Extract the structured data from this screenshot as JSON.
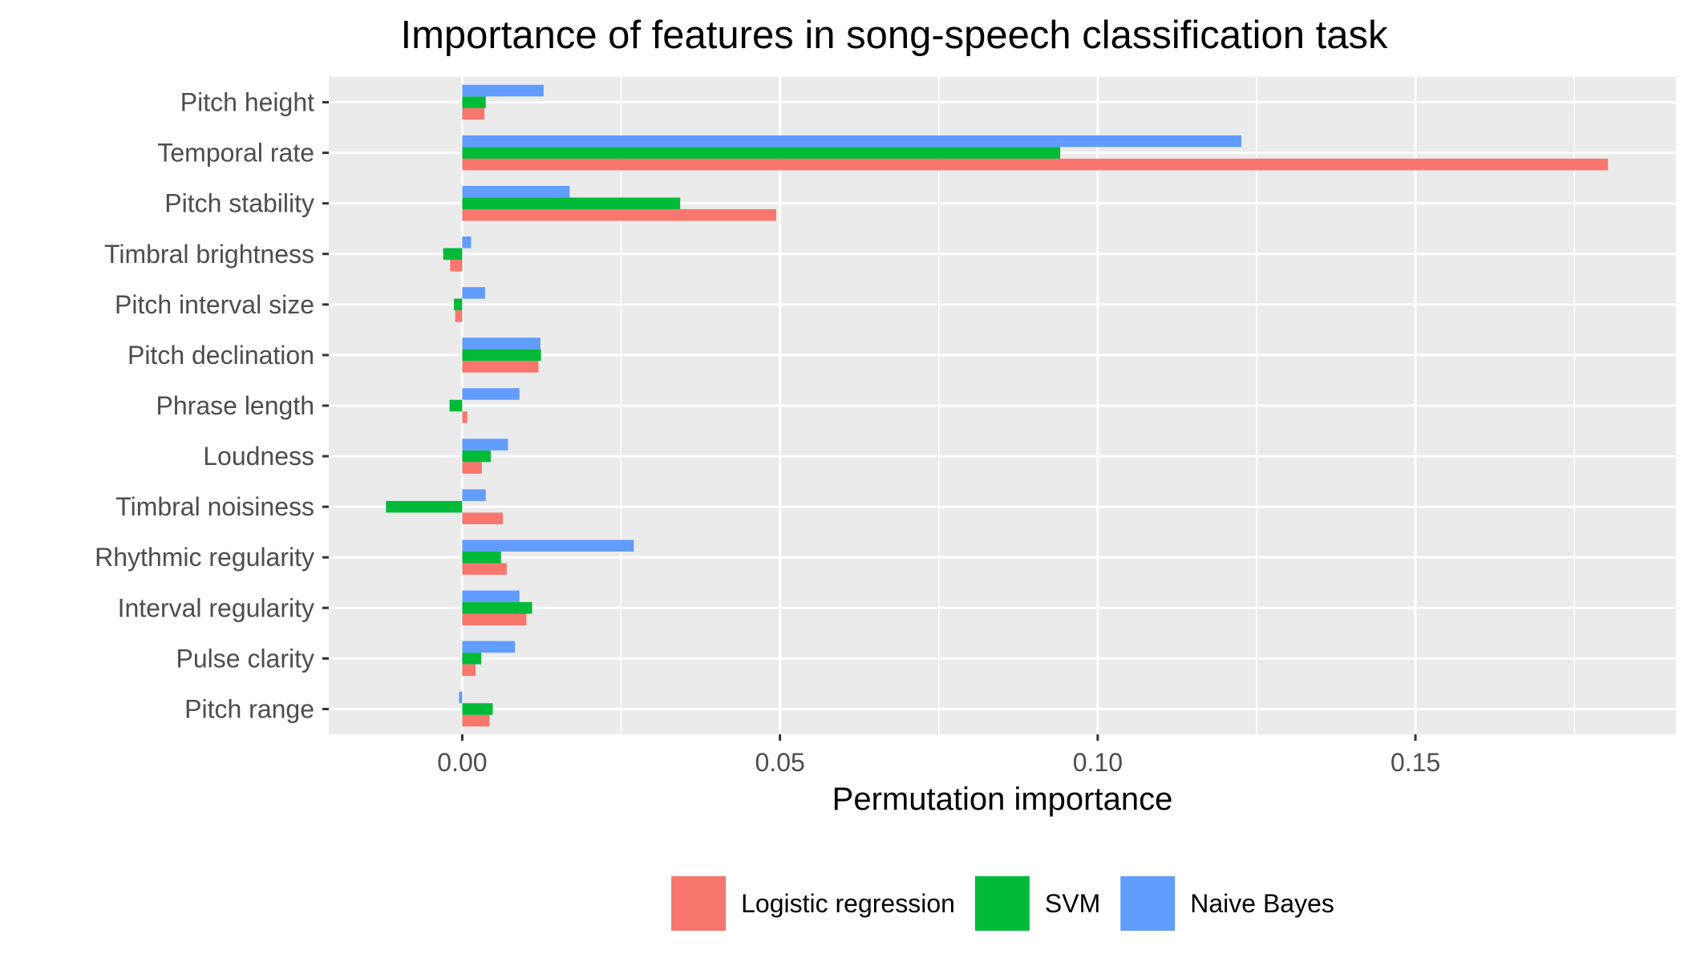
{
  "chart_data": {
    "type": "bar",
    "orientation": "horizontal",
    "title": "Importance of features in song-speech classification task",
    "xlabel": "Permutation importance",
    "ylabel": "",
    "xlim": [
      -0.021,
      0.191
    ],
    "xticks": [
      0.0,
      0.05,
      0.1,
      0.15
    ],
    "xtick_labels": [
      "0.00",
      "0.05",
      "0.10",
      "0.15"
    ],
    "categories": [
      "Pitch height",
      "Temporal rate",
      "Pitch stability",
      "Timbral brightness",
      "Pitch interval size",
      "Pitch declination",
      "Phrase length",
      "Loudness",
      "Timbral noisiness",
      "Rhythmic regularity",
      "Interval regularity",
      "Pulse clarity",
      "Pitch range"
    ],
    "series": [
      {
        "name": "Logistic regression",
        "color": "#F8766D",
        "values": [
          0.0035,
          0.1803,
          0.0494,
          -0.0019,
          -0.0011,
          0.012,
          0.0008,
          0.0031,
          0.0064,
          0.007,
          0.0101,
          0.0021,
          0.0043
        ]
      },
      {
        "name": "SVM",
        "color": "#00BA38",
        "values": [
          0.0037,
          0.0941,
          0.0343,
          -0.003,
          -0.0013,
          0.0124,
          -0.002,
          0.0045,
          -0.012,
          0.0061,
          0.011,
          0.003,
          0.0048
        ]
      },
      {
        "name": "Naive Bayes",
        "color": "#619CFF",
        "values": [
          0.0128,
          0.1226,
          0.0169,
          0.0014,
          0.0036,
          0.0123,
          0.009,
          0.0072,
          0.0037,
          0.027,
          0.009,
          0.0083,
          -0.0005
        ]
      }
    ],
    "grid": true,
    "panel_background": "#EBEBEB",
    "legend_position": "bottom"
  }
}
